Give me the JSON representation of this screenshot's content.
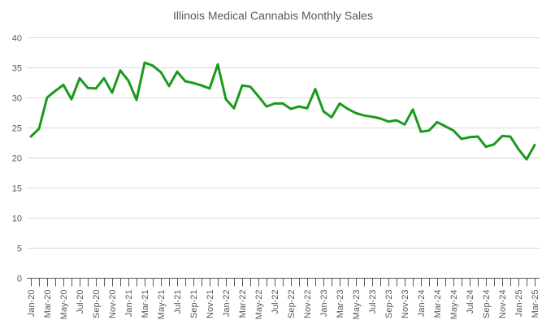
{
  "chart_data": {
    "type": "line",
    "title": "Illinois Medical Cannabis Monthly Sales",
    "xlabel": "",
    "ylabel": "",
    "ylim": [
      0,
      40
    ],
    "yticks": [
      0,
      5,
      10,
      15,
      20,
      25,
      30,
      35,
      40
    ],
    "grid": true,
    "legend": "none",
    "x": [
      "Jan-20",
      "Feb-20",
      "Mar-20",
      "Apr-20",
      "May-20",
      "Jun-20",
      "Jul-20",
      "Aug-20",
      "Sep-20",
      "Oct-20",
      "Nov-20",
      "Dec-20",
      "Jan-21",
      "Feb-21",
      "Mar-21",
      "Apr-21",
      "May-21",
      "Jun-21",
      "Jul-21",
      "Aug-21",
      "Sep-21",
      "Oct-21",
      "Nov-21",
      "Dec-21",
      "Jan-22",
      "Feb-22",
      "Mar-22",
      "Apr-22",
      "May-22",
      "Jun-22",
      "Jul-22",
      "Aug-22",
      "Sep-22",
      "Oct-22",
      "Nov-22",
      "Dec-22",
      "Jan-23",
      "Feb-23",
      "Mar-23",
      "Apr-23",
      "May-23",
      "Jun-23",
      "Jul-23",
      "Aug-23",
      "Sep-23",
      "Oct-23",
      "Nov-23",
      "Dec-23",
      "Jan-24",
      "Feb-24",
      "Mar-24",
      "Apr-24",
      "May-24",
      "Jun-24",
      "Jul-24",
      "Aug-24",
      "Sep-24",
      "Oct-24",
      "Nov-24",
      "Dec-24",
      "Jan-25",
      "Feb-25",
      "Mar-25"
    ],
    "x_tick_labels": [
      "Jan-20",
      "Mar-20",
      "May-20",
      "Jul-20",
      "Sep-20",
      "Nov-20",
      "Jan-21",
      "Mar-21",
      "May-21",
      "Jul-21",
      "Sep-21",
      "Nov-21",
      "Jan-22",
      "Mar-22",
      "May-22",
      "Jul-22",
      "Sep-22",
      "Nov-22",
      "Jan-23",
      "Mar-23",
      "May-23",
      "Jul-23",
      "Sep-23",
      "Nov-23",
      "Jan-24",
      "Mar-24",
      "May-24",
      "Jul-24",
      "Sep-24",
      "Nov-24",
      "Jan-25",
      "Mar-25"
    ],
    "series": [
      {
        "name": "Monthly Sales",
        "color": "#1a9a1a",
        "values": [
          23.5,
          24.8,
          30.0,
          31.1,
          32.1,
          29.7,
          33.2,
          31.6,
          31.5,
          33.2,
          30.8,
          34.5,
          32.8,
          29.6,
          35.8,
          35.3,
          34.2,
          31.9,
          34.3,
          32.7,
          32.4,
          32.0,
          31.5,
          35.5,
          29.7,
          28.2,
          32.0,
          31.8,
          30.2,
          28.5,
          29.0,
          29.0,
          28.1,
          28.5,
          28.2,
          31.4,
          27.7,
          26.7,
          29.0,
          28.1,
          27.4,
          27.0,
          26.8,
          26.5,
          26.0,
          26.2,
          25.5,
          28.0,
          24.3,
          24.5,
          25.9,
          25.2,
          24.5,
          23.1,
          23.4,
          23.5,
          21.8,
          22.2,
          23.6,
          23.5,
          21.4,
          19.7,
          22.1
        ]
      }
    ]
  }
}
